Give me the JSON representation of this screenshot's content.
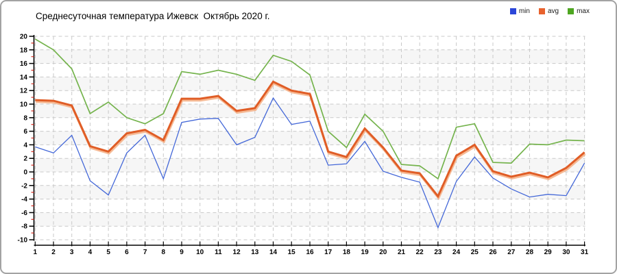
{
  "title": "Среднесуточная температура Ижевск  Октябрь 2020 г.",
  "legend": {
    "items": [
      {
        "name": "min",
        "label": "min",
        "color": "#2b46d9"
      },
      {
        "name": "avg",
        "label": "avg",
        "color": "#e8622d"
      },
      {
        "name": "max",
        "label": "max",
        "color": "#4ea621"
      }
    ]
  },
  "colors": {
    "background": "#ffffff",
    "frame_border": "#a3a3a3",
    "band_fill": "#f6f6f6",
    "grid": "#c9c9c9",
    "axis": "#000000",
    "minor_tick": "#d93025",
    "min_line": "#4367d8",
    "avg_line": "#e05d26",
    "avg_halo": "#f5b289",
    "max_line": "#74b34c"
  },
  "chart_data": {
    "type": "line",
    "title": "Среднесуточная температура Ижевск  Октябрь 2020 г.",
    "xlabel": "",
    "ylabel": "",
    "x": [
      1,
      2,
      3,
      4,
      5,
      6,
      7,
      8,
      9,
      10,
      11,
      12,
      13,
      14,
      15,
      16,
      17,
      18,
      19,
      20,
      21,
      22,
      23,
      24,
      25,
      26,
      27,
      28,
      29,
      30,
      31
    ],
    "yticks": [
      20,
      18,
      16,
      14,
      12,
      10,
      8,
      6,
      4,
      2,
      0,
      -2,
      -4,
      -6,
      -8,
      -10
    ],
    "ylim": [
      -10,
      20
    ],
    "grid": true,
    "legend_position": "top-right",
    "series": [
      {
        "name": "min",
        "color": "#4367d8",
        "values": [
          3.7,
          2.8,
          5.4,
          -1.3,
          -3.4,
          2.8,
          5.4,
          -1.0,
          7.3,
          7.8,
          7.9,
          4.0,
          5.1,
          10.9,
          7.0,
          7.5,
          1.0,
          1.2,
          4.5,
          0.1,
          -0.8,
          -1.5,
          -8.2,
          -1.4,
          2.2,
          -0.9,
          -2.5,
          -3.7,
          -3.3,
          -3.5,
          1.3
        ]
      },
      {
        "name": "avg",
        "color": "#e05d26",
        "values": [
          10.6,
          10.5,
          9.8,
          3.8,
          3.0,
          5.7,
          6.2,
          4.7,
          10.8,
          10.8,
          11.2,
          9.0,
          9.4,
          13.3,
          12.0,
          11.5,
          3.0,
          2.2,
          6.4,
          3.6,
          0.2,
          -0.2,
          -3.6,
          2.4,
          4.0,
          0.1,
          -0.7,
          -0.1,
          -0.8,
          0.6,
          2.9
        ]
      },
      {
        "name": "max",
        "color": "#74b34c",
        "values": [
          19.6,
          18.0,
          15.2,
          8.6,
          10.3,
          8.0,
          7.1,
          8.6,
          14.8,
          14.4,
          15.0,
          14.4,
          13.5,
          17.2,
          16.3,
          14.3,
          6.0,
          3.6,
          8.5,
          6.0,
          1.1,
          0.9,
          -1.0,
          6.6,
          7.1,
          1.4,
          1.3,
          4.1,
          4.0,
          4.7,
          4.6
        ]
      }
    ]
  }
}
